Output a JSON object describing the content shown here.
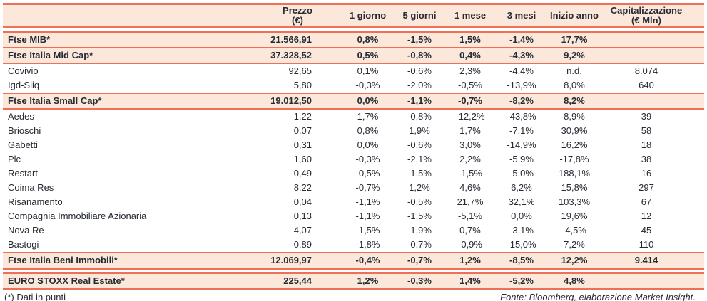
{
  "colors": {
    "accent_rule": "#ee7056",
    "highlight_bg": "#fce8db",
    "text": "#262b33"
  },
  "table": {
    "columns": [
      {
        "label": ""
      },
      {
        "label": "Prezzo\n(€)"
      },
      {
        "label": "1 giorno"
      },
      {
        "label": "5 giorni"
      },
      {
        "label": "1 mese"
      },
      {
        "label": "3 mesi"
      },
      {
        "label": "Inizio anno"
      },
      {
        "label": "Capitalizzazione\n(€ Mln)"
      }
    ],
    "rows": [
      {
        "style": "index",
        "rule_after": "single",
        "cells": [
          "Ftse MIB*",
          "21.566,91",
          "0,8%",
          "-1,5%",
          "1,5%",
          "-1,4%",
          "17,7%",
          ""
        ]
      },
      {
        "style": "index",
        "rule_after": "single",
        "cells": [
          "Ftse Italia Mid Cap*",
          "37.328,52",
          "0,5%",
          "-0,8%",
          "0,4%",
          "-4,3%",
          "9,2%",
          ""
        ]
      },
      {
        "style": "stock",
        "rule_after": "none",
        "cells": [
          "Covivio",
          "92,65",
          "0,1%",
          "-0,6%",
          "2,3%",
          "-4,4%",
          "n.d.",
          "8.074"
        ]
      },
      {
        "style": "stock",
        "rule_after": "single",
        "cells": [
          "Igd-Siiq",
          "5,80",
          "-0,3%",
          "-2,0%",
          "-0,5%",
          "-13,9%",
          "8,0%",
          "640"
        ]
      },
      {
        "style": "index",
        "rule_after": "single",
        "cells": [
          "Ftse Italia Small Cap*",
          "19.012,50",
          "0,0%",
          "-1,1%",
          "-0,7%",
          "-8,2%",
          "8,2%",
          ""
        ]
      },
      {
        "style": "stock",
        "rule_after": "none",
        "cells": [
          "Aedes",
          "1,22",
          "1,7%",
          "-0,8%",
          "-12,2%",
          "-43,8%",
          "8,9%",
          "39"
        ]
      },
      {
        "style": "stock",
        "rule_after": "none",
        "cells": [
          "Brioschi",
          "0,07",
          "0,8%",
          "1,9%",
          "1,7%",
          "-7,1%",
          "30,9%",
          "58"
        ]
      },
      {
        "style": "stock",
        "rule_after": "none",
        "cells": [
          "Gabetti",
          "0,31",
          "0,0%",
          "-0,6%",
          "3,0%",
          "-14,9%",
          "16,2%",
          "18"
        ]
      },
      {
        "style": "stock",
        "rule_after": "none",
        "cells": [
          "Plc",
          "1,60",
          "-0,3%",
          "-2,1%",
          "2,2%",
          "-5,9%",
          "-17,8%",
          "38"
        ]
      },
      {
        "style": "stock",
        "rule_after": "none",
        "cells": [
          "Restart",
          "0,49",
          "-0,5%",
          "-1,5%",
          "-1,5%",
          "-5,0%",
          "188,1%",
          "16"
        ]
      },
      {
        "style": "stock",
        "rule_after": "none",
        "cells": [
          "Coima Res",
          "8,22",
          "-0,7%",
          "1,2%",
          "4,6%",
          "6,2%",
          "15,8%",
          "297"
        ]
      },
      {
        "style": "stock",
        "rule_after": "none",
        "cells": [
          "Risanamento",
          "0,04",
          "-1,1%",
          "-0,5%",
          "21,7%",
          "32,1%",
          "103,3%",
          "67"
        ]
      },
      {
        "style": "stock",
        "rule_after": "none",
        "cells": [
          "Compagnia Immobiliare Azionaria",
          "0,13",
          "-1,1%",
          "-1,5%",
          "-5,1%",
          "0,0%",
          "19,6%",
          "12"
        ]
      },
      {
        "style": "stock",
        "rule_after": "none",
        "cells": [
          "Nova Re",
          "4,07",
          "-1,5%",
          "-1,9%",
          "0,7%",
          "-3,1%",
          "-4,5%",
          "45"
        ]
      },
      {
        "style": "stock",
        "rule_after": "single",
        "cells": [
          "Bastogi",
          "0,89",
          "-1,8%",
          "-0,7%",
          "-0,9%",
          "-15,0%",
          "7,2%",
          "110"
        ]
      },
      {
        "style": "index",
        "rule_after": "double",
        "cells": [
          "Ftse Italia Beni Immobili*",
          "12.069,97",
          "-0,4%",
          "-0,7%",
          "1,2%",
          "-8,5%",
          "12,2%",
          "9.414"
        ]
      },
      {
        "style": "index",
        "rule_after": "single",
        "cells": [
          "EURO STOXX Real Estate*",
          "225,44",
          "1,2%",
          "-0,3%",
          "1,4%",
          "-5,2%",
          "4,8%",
          ""
        ]
      }
    ]
  },
  "footer": {
    "note": "(*) Dati in punti",
    "source": "Fonte: Bloomberg, elaborazione Market Insight."
  }
}
